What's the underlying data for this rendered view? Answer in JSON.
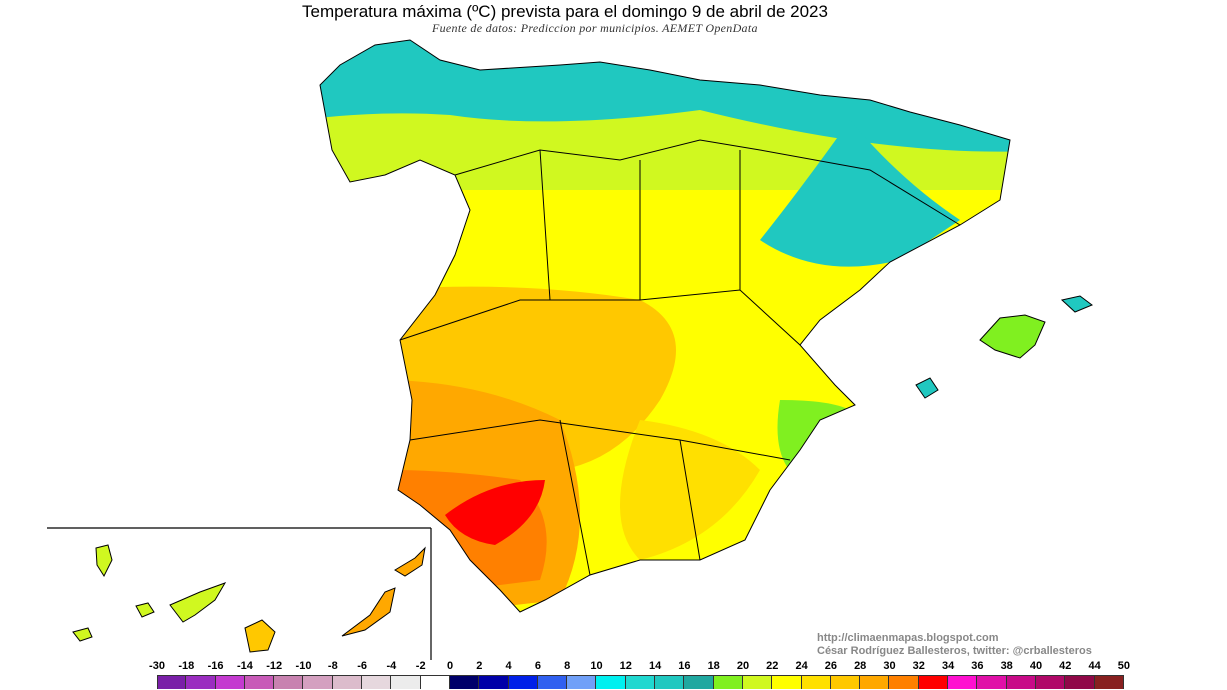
{
  "title": "Temperatura máxima (ºC) prevista para el domingo 9 de abril de 2023",
  "subtitle": "Fuente de datos: Prediccion por municipios. AEMET OpenData",
  "credits": {
    "url": "http://climaenmapas.blogspot.com",
    "author": "César Rodríguez Ballesteros, twitter: @crballesteros"
  },
  "legend": {
    "labels": [
      "-30",
      "-18",
      "-16",
      "-14",
      "-12",
      "-10",
      "-8",
      "-6",
      "-4",
      "-2",
      "0",
      "2",
      "4",
      "6",
      "8",
      "10",
      "12",
      "14",
      "16",
      "18",
      "20",
      "22",
      "24",
      "26",
      "28",
      "30",
      "32",
      "34",
      "36",
      "38",
      "40",
      "42",
      "44",
      "50"
    ],
    "colors": [
      "#7a1fa8",
      "#9a2dc0",
      "#c43ad0",
      "#c85ab8",
      "#c882b0",
      "#d4a0c0",
      "#dcbccc",
      "#e6d8de",
      "#ececec",
      "#ffffff",
      "#00006a",
      "#0000a8",
      "#0020e8",
      "#3060f0",
      "#70a0f8",
      "#00f0f0",
      "#20d8d0",
      "#20c8c0",
      "#20a8a0",
      "#80f020",
      "#d0f820",
      "#ffff00",
      "#ffe000",
      "#ffc800",
      "#ffa800",
      "#ff8000",
      "#ff0000",
      "#ff10d0",
      "#e010a8",
      "#c80a88",
      "#b00868",
      "#900848",
      "#882020"
    ]
  }
}
